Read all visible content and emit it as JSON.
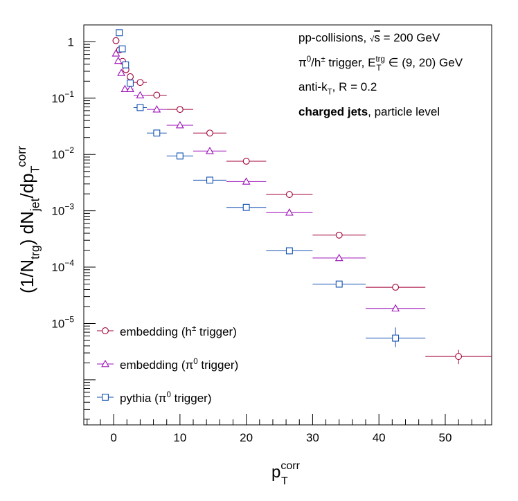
{
  "chart_data": {
    "type": "scatter",
    "xlabel": {
      "main": "p",
      "sub": "T",
      "sup": "corr"
    },
    "ylabel": {
      "parts": [
        {
          "t": "(1/N"
        },
        {
          "t": "trg",
          "sub": true
        },
        {
          "t": ") dN"
        },
        {
          "t": "jet",
          "sub": true
        },
        {
          "t": "/dp"
        },
        {
          "t": "T",
          "sub": true
        },
        {
          "t": "corr",
          "sup": true
        }
      ]
    },
    "xlim": [
      -4.5,
      57
    ],
    "ylim_log10": [
      -6.8,
      0.3
    ],
    "y_scale": "log",
    "x_ticks": [
      0,
      10,
      20,
      30,
      40,
      50
    ],
    "x_tick_labels": [
      "0",
      "10",
      "20",
      "30",
      "40",
      "50"
    ],
    "y_ticks": [
      {
        "exp": 0,
        "label": "1"
      },
      {
        "exp": -1,
        "label": "10",
        "sup": "−1"
      },
      {
        "exp": -2,
        "label": "10",
        "sup": "−2"
      },
      {
        "exp": -3,
        "label": "10",
        "sup": "−3"
      },
      {
        "exp": -4,
        "label": "10",
        "sup": "−4"
      },
      {
        "exp": -5,
        "label": "10",
        "sup": "−5"
      }
    ],
    "annotations": [
      [
        {
          "t": "pp-collisions, "
        },
        {
          "t": "√",
          "small": true
        },
        {
          "t": "s",
          "overline": true
        },
        {
          "t": " = 200 GeV"
        }
      ],
      [
        {
          "t": "π"
        },
        {
          "t": "0",
          "sup": true
        },
        {
          "t": "/h"
        },
        {
          "t": "±",
          "sup": true
        },
        {
          "t": " trigger, E"
        },
        {
          "t": "trg",
          "sup": true,
          "stack": "T"
        },
        {
          "t": " ∈ (9, 20) GeV"
        }
      ],
      [
        {
          "t": "anti-k"
        },
        {
          "t": "T",
          "sub": true
        },
        {
          "t": ", R = 0.2"
        }
      ],
      [
        {
          "t": "charged jets",
          "bold": true
        },
        {
          "t": ", particle level"
        }
      ]
    ],
    "legend_position": "bottom-left",
    "series": [
      {
        "name": "embedding (h± trigger)",
        "legend": [
          {
            "t": "embedding (h"
          },
          {
            "t": "±",
            "sup": true
          },
          {
            "t": " trigger)"
          }
        ],
        "marker": "circle",
        "color": "#a0003a",
        "points": [
          {
            "x": 0.35,
            "y": 1.05,
            "xerr": 0
          },
          {
            "x": 0.9,
            "y": 0.72,
            "xerr": 0
          },
          {
            "x": 1.35,
            "y": 0.45,
            "xerr": 0
          },
          {
            "x": 1.85,
            "y": 0.32,
            "xerr": 0
          },
          {
            "x": 2.5,
            "y": 0.24,
            "xerr": 0.5
          },
          {
            "x": 4.0,
            "y": 0.19,
            "xerr": 1.0
          },
          {
            "x": 6.5,
            "y": 0.113,
            "xerr": 1.5
          },
          {
            "x": 10.0,
            "y": 0.063,
            "xerr": 2.0
          },
          {
            "x": 14.5,
            "y": 0.024,
            "xerr": 2.5
          },
          {
            "x": 20.0,
            "y": 0.0076,
            "xerr": 3.0
          },
          {
            "x": 26.5,
            "y": 0.00195,
            "xerr": 3.5
          },
          {
            "x": 34.0,
            "y": 0.00037,
            "xerr": 4.0
          },
          {
            "x": 42.5,
            "y": 4.4e-05,
            "xerr": 4.5
          },
          {
            "x": 52.0,
            "y": 2.6e-06,
            "xerr": 5.0,
            "yerr": [
              1.9e-06,
              3.4e-06
            ]
          }
        ]
      },
      {
        "name": "embedding (π0 trigger)",
        "legend": [
          {
            "t": "embedding (π"
          },
          {
            "t": "0",
            "sup": true
          },
          {
            "t": " trigger)"
          }
        ],
        "marker": "triangle",
        "color": "#9b10b8",
        "points": [
          {
            "x": 0.35,
            "y": 0.62,
            "xerr": 0
          },
          {
            "x": 0.7,
            "y": 0.46,
            "xerr": 0
          },
          {
            "x": 1.15,
            "y": 0.28,
            "xerr": 0
          },
          {
            "x": 1.7,
            "y": 0.145,
            "xerr": 0
          },
          {
            "x": 2.5,
            "y": 0.145,
            "xerr": 0.5
          },
          {
            "x": 4.0,
            "y": 0.112,
            "xerr": 1.0
          },
          {
            "x": 6.5,
            "y": 0.063,
            "xerr": 1.5
          },
          {
            "x": 10.0,
            "y": 0.033,
            "xerr": 2.0
          },
          {
            "x": 14.5,
            "y": 0.0115,
            "xerr": 2.5
          },
          {
            "x": 20.0,
            "y": 0.0033,
            "xerr": 3.0
          },
          {
            "x": 26.5,
            "y": 0.00093,
            "xerr": 3.5
          },
          {
            "x": 34.0,
            "y": 0.000145,
            "xerr": 4.0
          },
          {
            "x": 42.5,
            "y": 1.85e-05,
            "xerr": 4.5
          }
        ]
      },
      {
        "name": "pythia (π0 trigger)",
        "legend": [
          {
            "t": "pythia (π"
          },
          {
            "t": "0",
            "sup": true
          },
          {
            "t": " trigger)"
          }
        ],
        "marker": "square",
        "color": "#1050b0",
        "points": [
          {
            "x": 0.85,
            "y": 1.45,
            "xerr": 0
          },
          {
            "x": 1.3,
            "y": 0.75,
            "xerr": 0
          },
          {
            "x": 1.8,
            "y": 0.39,
            "xerr": 0
          },
          {
            "x": 2.5,
            "y": 0.185,
            "xerr": 0.5
          },
          {
            "x": 4.0,
            "y": 0.068,
            "xerr": 1.0
          },
          {
            "x": 6.5,
            "y": 0.024,
            "xerr": 1.5
          },
          {
            "x": 10.0,
            "y": 0.0094,
            "xerr": 2.0
          },
          {
            "x": 14.5,
            "y": 0.0035,
            "xerr": 2.5
          },
          {
            "x": 20.0,
            "y": 0.00115,
            "xerr": 3.0
          },
          {
            "x": 26.5,
            "y": 0.000195,
            "xerr": 3.5
          },
          {
            "x": 34.0,
            "y": 5e-05,
            "xerr": 4.0
          },
          {
            "x": 42.5,
            "y": 5.5e-06,
            "xerr": 4.5,
            "yerr": [
              3.8e-06,
              8.5e-06
            ]
          }
        ]
      }
    ]
  }
}
